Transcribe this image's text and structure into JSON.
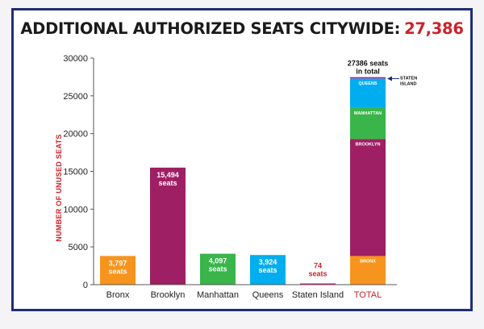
{
  "header": {
    "title": "ADDITIONAL AUTHORIZED SEATS CITYWIDE:",
    "total": "27,386"
  },
  "chart_data": {
    "type": "bar",
    "title": "ADDITIONAL AUTHORIZED SEATS CITYWIDE: 27,386",
    "ylabel": "NUMBER OF UNUSED SEATS",
    "xlabel": "",
    "ylim": [
      0,
      30000
    ],
    "yticks": [
      0,
      5000,
      10000,
      15000,
      20000,
      25000,
      30000
    ],
    "bars": [
      {
        "category": "Bronx",
        "value": 3797,
        "value_label": "3,797",
        "unit": "seats",
        "color": "#f7941d",
        "label_color": "#ffffff"
      },
      {
        "category": "Brooklyn",
        "value": 15494,
        "value_label": "15,494",
        "unit": "seats",
        "color": "#9e1f63",
        "label_color": "#ffffff"
      },
      {
        "category": "Manhattan",
        "value": 4097,
        "value_label": "4,097",
        "unit": "seats",
        "color": "#39b54a",
        "label_color": "#ffffff"
      },
      {
        "category": "Queens",
        "value": 3924,
        "value_label": "3,924",
        "unit": "seats",
        "color": "#00aeef",
        "label_color": "#ffffff"
      },
      {
        "category": "Staten Island",
        "value": 74,
        "value_label": "74",
        "unit": "seats",
        "color": "#ec008c",
        "label_color": "#cc2229"
      }
    ],
    "stacked_total": {
      "category": "TOTAL",
      "value": 27386,
      "annotation": [
        "27386 seats",
        "in total"
      ],
      "segments": [
        {
          "name": "BRONX",
          "value": 3797,
          "color": "#f7941d"
        },
        {
          "name": "BROOKLYN",
          "value": 15494,
          "color": "#9e1f63"
        },
        {
          "name": "MANHATTAN",
          "value": 4097,
          "color": "#39b54a"
        },
        {
          "name": "QUEENS",
          "value": 3924,
          "color": "#00aeef"
        },
        {
          "name": "STATEN ISLAND",
          "value": 74,
          "color": "#ec008c"
        }
      ],
      "callout": [
        "STATEN",
        "ISLAND"
      ]
    }
  }
}
